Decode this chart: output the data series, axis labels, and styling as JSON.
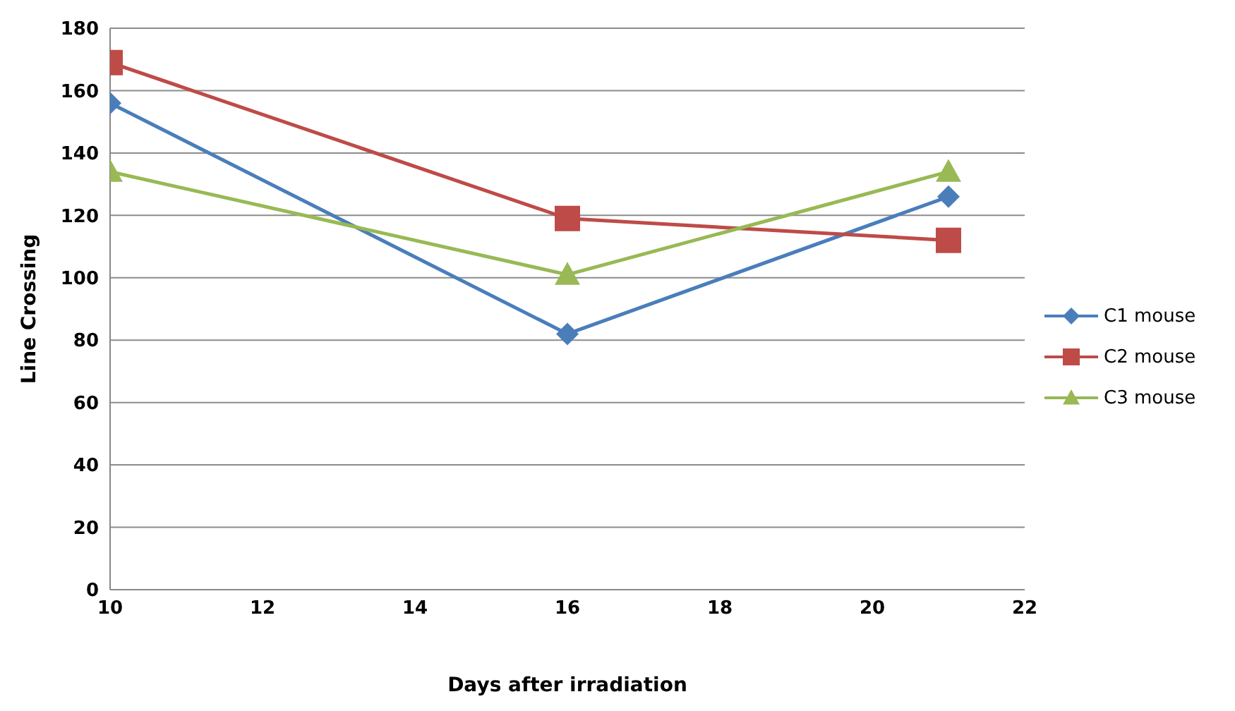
{
  "chart_data": {
    "type": "line",
    "xlabel": "Days after irradiation",
    "ylabel": "Line Crossing",
    "x": [
      10,
      16,
      21
    ],
    "series": [
      {
        "name": "C1 mouse",
        "color": "#4a7ebb",
        "marker": "diamond",
        "values": [
          156,
          82,
          126
        ]
      },
      {
        "name": "C2 mouse",
        "color": "#be4b48",
        "marker": "square",
        "values": [
          169,
          119,
          112
        ]
      },
      {
        "name": "C3 mouse",
        "color": "#98b954",
        "marker": "triangle",
        "values": [
          134,
          101,
          134
        ]
      }
    ],
    "xlim": [
      10,
      22
    ],
    "xticks": [
      10,
      12,
      14,
      16,
      18,
      20,
      22
    ],
    "ylim": [
      0,
      180
    ],
    "yticks": [
      0,
      20,
      40,
      60,
      80,
      100,
      120,
      140,
      160,
      180
    ],
    "grid": "y",
    "legend": "right",
    "line_style": "solid"
  }
}
